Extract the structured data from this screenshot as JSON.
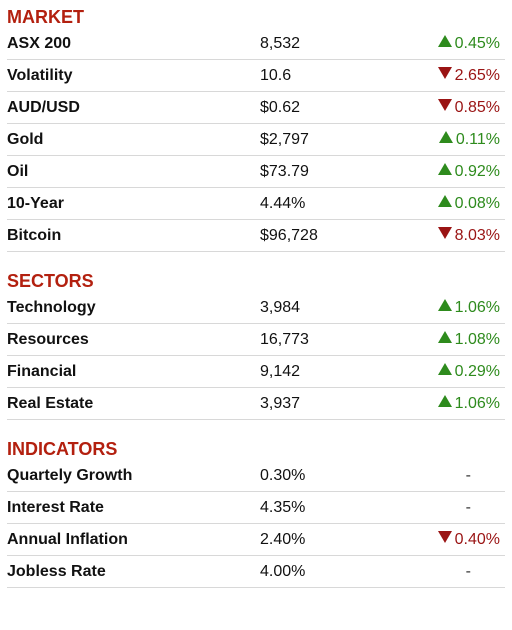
{
  "sections": [
    {
      "title": "MARKET",
      "rows": [
        {
          "name": "ASX 200",
          "value": "8,532",
          "change": "0.45%",
          "dir": "up"
        },
        {
          "name": "Volatility",
          "value": "10.6",
          "change": "2.65%",
          "dir": "down"
        },
        {
          "name": "AUD/USD",
          "value": "$0.62",
          "change": "0.85%",
          "dir": "down"
        },
        {
          "name": "Gold",
          "value": "$2,797",
          "change": "0.11%",
          "dir": "up"
        },
        {
          "name": "Oil",
          "value": "$73.79",
          "change": "0.92%",
          "dir": "up"
        },
        {
          "name": "10-Year",
          "value": "4.44%",
          "change": "0.08%",
          "dir": "up"
        },
        {
          "name": "Bitcoin",
          "value": "$96,728",
          "change": "8.03%",
          "dir": "down"
        }
      ]
    },
    {
      "title": "SECTORS",
      "rows": [
        {
          "name": "Technology",
          "value": "3,984",
          "change": "1.06%",
          "dir": "up"
        },
        {
          "name": "Resources",
          "value": "16,773",
          "change": "1.08%",
          "dir": "up"
        },
        {
          "name": "Financial",
          "value": "9,142",
          "change": "0.29%",
          "dir": "up"
        },
        {
          "name": "Real Estate",
          "value": "3,937",
          "change": "1.06%",
          "dir": "up"
        }
      ]
    },
    {
      "title": "INDICATORS",
      "rows": [
        {
          "name": "Quartely Growth",
          "value": "0.30%",
          "change": "-",
          "dir": "flat"
        },
        {
          "name": "Interest Rate",
          "value": "4.35%",
          "change": "-",
          "dir": "flat"
        },
        {
          "name": "Annual Inflation",
          "value": "2.40%",
          "change": "0.40%",
          "dir": "down"
        },
        {
          "name": "Jobless Rate",
          "value": "4.00%",
          "change": "-",
          "dir": "flat"
        }
      ]
    }
  ],
  "colors": {
    "accent": "#b3200f",
    "up": "#2e8b1d",
    "down": "#9a1414"
  }
}
